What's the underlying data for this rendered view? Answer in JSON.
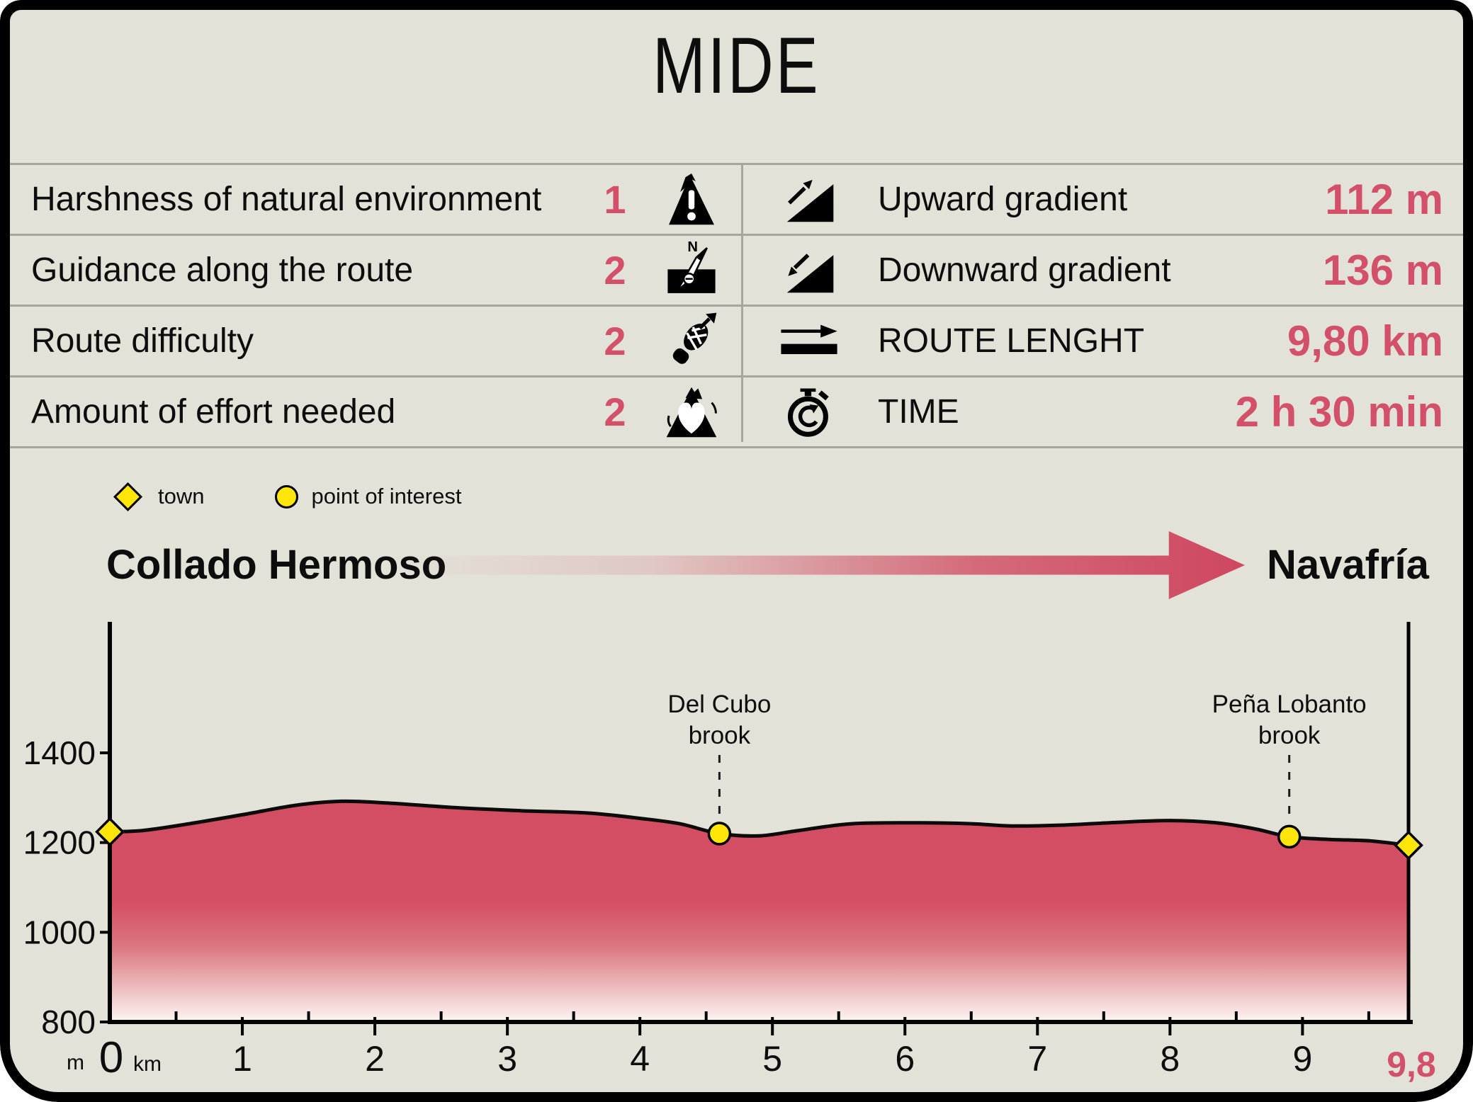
{
  "title": "MIDE",
  "colors": {
    "accent_text": "#d2506a",
    "profile_fill": "#d34e63",
    "profile_fill_fade": "#fdf6f2",
    "marker_yellow": "#ffe608",
    "background": "#e3e2d8",
    "grid_gray": "#a6a69b"
  },
  "table": {
    "left_rows": [
      {
        "label": "Harshness of natural environment",
        "value": "1",
        "icon": "mountain-warning-icon"
      },
      {
        "label": "Guidance along the route",
        "value": "2",
        "icon": "compass-icon"
      },
      {
        "label": "Route difficulty",
        "value": "2",
        "icon": "boot-icon"
      },
      {
        "label": "Amount of effort needed",
        "value": "2",
        "icon": "heart-effort-icon"
      }
    ],
    "right_rows": [
      {
        "label": "Upward gradient",
        "value": "112 m",
        "icon": "upward-gradient-icon"
      },
      {
        "label": "Downward gradient",
        "value": "136 m",
        "icon": "downward-gradient-icon"
      },
      {
        "label": "ROUTE LENGHT",
        "value": "9,80 km",
        "icon": "route-length-icon"
      },
      {
        "label": "TIME",
        "value": "2 h 30 min",
        "icon": "stopwatch-icon"
      }
    ]
  },
  "legend": {
    "town_label": "town",
    "poi_label": "point of interest"
  },
  "route": {
    "start": "Collado Hermoso",
    "end": "Navafría"
  },
  "chart_data": {
    "type": "area",
    "title": "Elevation profile",
    "xlabel": "km",
    "ylabel": "m",
    "x_unit_label": "km",
    "y_unit_label": "m",
    "x_max": 9.8,
    "x_ticks": [
      1,
      2,
      3,
      4,
      5,
      6,
      7,
      8,
      9
    ],
    "x_origin_label": "0",
    "x_end_label": "9,8",
    "y_ticks": [
      800,
      1000,
      1200,
      1400
    ],
    "ylim": [
      800,
      1400
    ],
    "grid": false,
    "profile_km_m": [
      [
        0,
        1224
      ],
      [
        0.25,
        1227
      ],
      [
        0.6,
        1242
      ],
      [
        1.0,
        1262
      ],
      [
        1.4,
        1283
      ],
      [
        1.75,
        1292
      ],
      [
        2.1,
        1288
      ],
      [
        2.6,
        1278
      ],
      [
        3.1,
        1271
      ],
      [
        3.6,
        1266
      ],
      [
        4.0,
        1254
      ],
      [
        4.3,
        1242
      ],
      [
        4.6,
        1220
      ],
      [
        4.9,
        1215
      ],
      [
        5.2,
        1227
      ],
      [
        5.6,
        1242
      ],
      [
        6.1,
        1244
      ],
      [
        6.5,
        1242
      ],
      [
        6.8,
        1237
      ],
      [
        7.2,
        1239
      ],
      [
        7.6,
        1245
      ],
      [
        8.0,
        1249
      ],
      [
        8.35,
        1244
      ],
      [
        8.65,
        1230
      ],
      [
        8.9,
        1213
      ],
      [
        9.2,
        1207
      ],
      [
        9.5,
        1204
      ],
      [
        9.8,
        1194
      ]
    ],
    "towns": [
      {
        "km": 0,
        "m": 1224
      },
      {
        "km": 9.8,
        "m": 1194
      }
    ],
    "points_of_interest": [
      {
        "km": 4.6,
        "m": 1220,
        "label_line1": "Del Cubo",
        "label_line2": "brook"
      },
      {
        "km": 8.9,
        "m": 1213,
        "label_line1": "Peña Lobanto",
        "label_line2": "brook"
      }
    ]
  }
}
